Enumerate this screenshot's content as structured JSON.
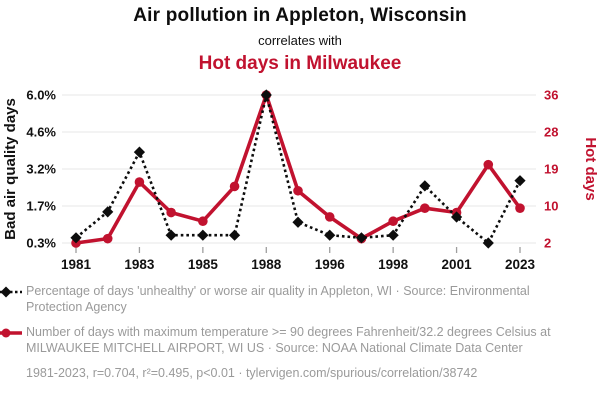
{
  "header": {
    "title": "Air pollution in Appleton, Wisconsin",
    "subtitle": "correlates with",
    "title2": "Hot days in Milwaukee"
  },
  "colors": {
    "accent_red": "#c1122f",
    "series_black": "#0d0d0d",
    "grid": "#e7e7e7",
    "tick": "#9e9e9e",
    "muted_text": "#9a9a9a"
  },
  "chart_data": {
    "type": "line",
    "n_points": 15,
    "x_tick_labels": [
      "1981",
      "1983",
      "1985",
      "1988",
      "1996",
      "1998",
      "2001",
      "2023"
    ],
    "labeled_point_indices": [
      0,
      2,
      4,
      6,
      8,
      10,
      12,
      14
    ],
    "left_axis": {
      "label": "Bad air quality days",
      "tick_labels": [
        "6.0%",
        "4.6%",
        "3.2%",
        "1.7%",
        "0.3%"
      ],
      "range": [
        0.3,
        6.0
      ]
    },
    "right_axis": {
      "label": "Hot days",
      "tick_labels": [
        "36",
        "28",
        "19",
        "10",
        "2"
      ],
      "range": [
        2,
        36
      ]
    },
    "grid": "horizontal",
    "legend_position": "below",
    "series": [
      {
        "name": "Percentage of days 'unhealthy' or worse air quality in Appleton, WI",
        "axis": "left",
        "color": "#0d0d0d",
        "marker": "diamond",
        "line_style": "dotted",
        "values": [
          0.5,
          1.5,
          3.8,
          0.6,
          0.6,
          0.6,
          6.0,
          1.1,
          0.6,
          0.5,
          0.6,
          2.5,
          1.3,
          0.3,
          2.7
        ]
      },
      {
        "name": "Number of days with maximum temperature >= 90 degrees Fahrenheit at MILWAUKEE MITCHELL AIRPORT, WI US",
        "axis": "right",
        "color": "#c1122f",
        "marker": "circle",
        "line_style": "solid",
        "values": [
          2,
          3,
          16,
          9,
          7,
          15,
          36,
          14,
          8,
          3,
          7,
          10,
          9,
          20,
          10
        ]
      }
    ]
  },
  "legend": {
    "items": [
      {
        "label": "Percentage of days 'unhealthy' or worse air quality in Appleton, WI · Source: Environmental Protection Agency"
      },
      {
        "label": "Number of days with maximum temperature >= 90 degrees Fahrenheit/32.2 degrees Celsius at MILWAUKEE MITCHELL AIRPORT, WI US · Source: NOAA National Climate Data Center"
      }
    ]
  },
  "footer": {
    "stats": "1981-2023, r=0.704, r²=0.495, p<0.01 · tylervigen.com/spurious/correlation/38742"
  }
}
